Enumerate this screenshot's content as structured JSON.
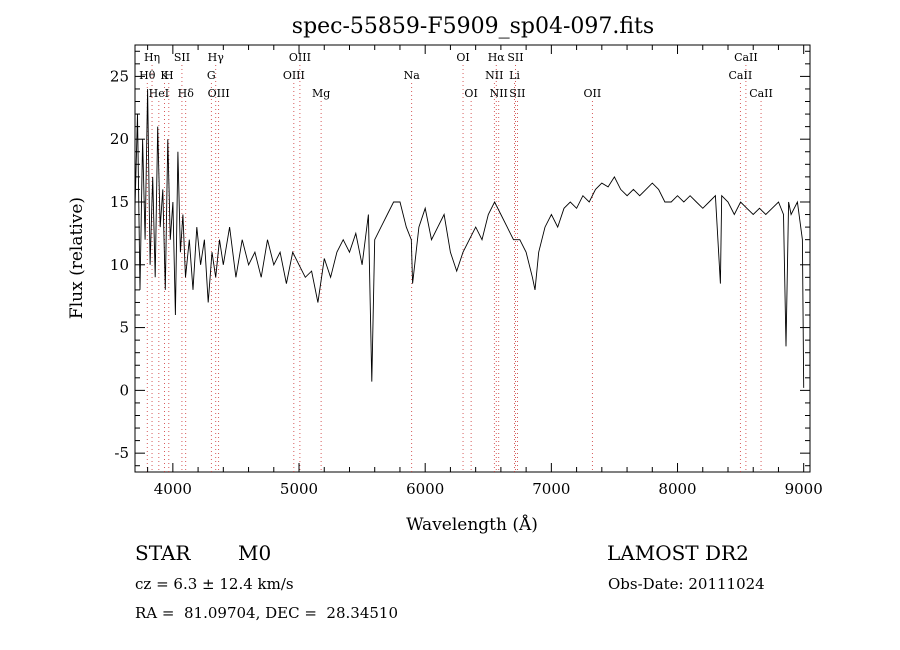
{
  "chart_data": {
    "type": "line",
    "title": "spec-55859-F5909_sp04-097.fits",
    "xlabel": "Wavelength (Å)",
    "ylabel": "Flux (relative)",
    "xlim": [
      3700,
      9050
    ],
    "ylim": [
      -6.5,
      27.5
    ],
    "xticks": [
      4000,
      5000,
      6000,
      7000,
      8000,
      9000
    ],
    "yticks": [
      -5,
      0,
      5,
      10,
      15,
      20,
      25
    ],
    "grid": false,
    "line_color": "#000000",
    "marker_color": "#cc3333",
    "series": [
      {
        "x": [
          3700,
          3720,
          3740,
          3760,
          3780,
          3800,
          3820,
          3840,
          3860,
          3880,
          3900,
          3920,
          3940,
          3960,
          3980,
          4000,
          4020,
          4040,
          4060,
          4080,
          4100,
          4130,
          4160,
          4190,
          4220,
          4250,
          4280,
          4310,
          4340,
          4370,
          4400,
          4450,
          4500,
          4550,
          4600,
          4650,
          4700,
          4750,
          4800,
          4850,
          4900,
          4950,
          5000,
          5050,
          5100,
          5150,
          5200,
          5250,
          5300,
          5350,
          5400,
          5450,
          5500,
          5550,
          5577,
          5600,
          5650,
          5700,
          5750,
          5800,
          5850,
          5890,
          5900,
          5950,
          6000,
          6050,
          6100,
          6150,
          6200,
          6250,
          6300,
          6350,
          6400,
          6450,
          6500,
          6550,
          6600,
          6650,
          6700,
          6750,
          6800,
          6850,
          6870,
          6900,
          6950,
          7000,
          7050,
          7100,
          7150,
          7200,
          7250,
          7300,
          7350,
          7400,
          7450,
          7500,
          7550,
          7600,
          7650,
          7700,
          7750,
          7800,
          7850,
          7900,
          7950,
          8000,
          8050,
          8100,
          8150,
          8200,
          8250,
          8300,
          8340,
          8350,
          8400,
          8450,
          8500,
          8550,
          8600,
          8650,
          8700,
          8750,
          8800,
          8840,
          8860,
          8880,
          8900,
          8950,
          8990,
          9000
        ],
        "y": [
          14.5,
          22,
          8,
          20,
          12,
          24,
          10,
          17,
          9,
          21,
          13,
          16,
          8,
          20,
          12,
          15,
          6,
          19,
          11,
          14,
          9,
          12,
          8,
          13,
          10,
          12,
          7,
          11,
          9,
          12,
          10,
          13,
          9,
          12,
          10,
          11,
          9,
          12,
          10,
          11,
          8.5,
          11,
          10,
          9,
          9.5,
          7,
          10.5,
          9,
          11,
          12,
          11,
          12.5,
          10,
          14,
          0.7,
          12,
          13,
          14,
          15,
          15,
          13,
          12,
          8.5,
          13,
          14.5,
          12,
          13,
          14,
          11,
          9.5,
          11,
          12,
          13,
          12,
          14,
          15,
          14,
          13,
          12,
          12,
          11,
          9,
          8,
          11,
          13,
          14,
          13,
          14.5,
          15,
          14.5,
          15.5,
          15,
          16,
          16.5,
          16.2,
          17,
          16,
          15.5,
          16,
          15.5,
          16,
          16.5,
          16,
          15,
          15,
          15.5,
          15,
          15.5,
          15,
          14.5,
          15,
          15.5,
          8.5,
          15.5,
          15,
          14,
          15,
          14.5,
          14,
          14.5,
          14,
          14.5,
          15,
          14,
          3.5,
          15,
          14,
          15,
          12,
          0.2
        ]
      }
    ],
    "lines": [
      {
        "label": "Hη",
        "x": 3835,
        "row": 1
      },
      {
        "label": "Hθ",
        "x": 3797,
        "row": 2
      },
      {
        "label": "HeI",
        "x": 3889,
        "row": 3
      },
      {
        "label": "K",
        "x": 3934,
        "row": 2
      },
      {
        "label": "H",
        "x": 3968,
        "row": 2
      },
      {
        "label": "SII",
        "x": 4072,
        "row": 1
      },
      {
        "label": "Hδ",
        "x": 4102,
        "row": 3
      },
      {
        "label": "Hγ",
        "x": 4340,
        "row": 1
      },
      {
        "label": "G",
        "x": 4305,
        "row": 2
      },
      {
        "label": "OIII",
        "x": 4363,
        "row": 3
      },
      {
        "label": "OIII",
        "x": 5007,
        "row": 1
      },
      {
        "label": "OIII",
        "x": 4959,
        "row": 2
      },
      {
        "label": "Mg",
        "x": 5175,
        "row": 3
      },
      {
        "label": "Na",
        "x": 5893,
        "row": 2
      },
      {
        "label": "OI",
        "x": 6300,
        "row": 1
      },
      {
        "label": "OI",
        "x": 6364,
        "row": 3
      },
      {
        "label": "Hα",
        "x": 6563,
        "row": 1
      },
      {
        "label": "NII",
        "x": 6548,
        "row": 2
      },
      {
        "label": "NII",
        "x": 6583,
        "row": 3
      },
      {
        "label": "SII",
        "x": 6716,
        "row": 1
      },
      {
        "label": "Li",
        "x": 6708,
        "row": 2
      },
      {
        "label": "SII",
        "x": 6731,
        "row": 3
      },
      {
        "label": "OII",
        "x": 7325,
        "row": 3
      },
      {
        "label": "CaII",
        "x": 8542,
        "row": 1
      },
      {
        "label": "CaII",
        "x": 8498,
        "row": 2
      },
      {
        "label": "CaII",
        "x": 8662,
        "row": 3
      }
    ]
  },
  "info": {
    "class_label": "STAR",
    "subclass": "M0",
    "survey": "LAMOST DR2",
    "cz": "cz = 6.3 ± 12.4 km/s",
    "obs_date": "Obs-Date: 20111024",
    "coords": "RA =  81.09704, DEC =  28.34510"
  }
}
